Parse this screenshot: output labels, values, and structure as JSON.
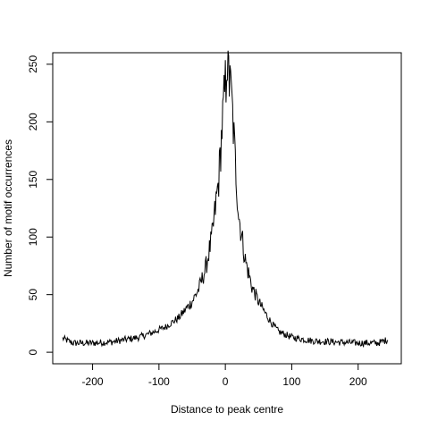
{
  "chart_data": {
    "type": "line",
    "title": "",
    "xlabel": "Distance to peak centre",
    "ylabel": "Number of motif occurrences",
    "xlim": [
      -260,
      265
    ],
    "ylim": [
      -10,
      260
    ],
    "x_ticks": [
      -200,
      -100,
      0,
      100,
      200
    ],
    "x_tick_labels": [
      "-200",
      "-100",
      "0",
      "100",
      "200"
    ],
    "y_ticks": [
      0,
      50,
      100,
      150,
      200,
      250
    ],
    "y_tick_labels": [
      "0",
      "50",
      "100",
      "150",
      "200",
      "250"
    ],
    "grid": false,
    "legend": "none",
    "line_color": "#000000",
    "x_range": [
      -245,
      245
    ],
    "profile_points": [
      [
        -245,
        12
      ],
      [
        -230,
        8
      ],
      [
        -200,
        8
      ],
      [
        -170,
        9
      ],
      [
        -150,
        11
      ],
      [
        -130,
        13
      ],
      [
        -110,
        17
      ],
      [
        -90,
        22
      ],
      [
        -70,
        30
      ],
      [
        -50,
        44
      ],
      [
        -40,
        55
      ],
      [
        -30,
        72
      ],
      [
        -20,
        100
      ],
      [
        -10,
        150
      ],
      [
        -5,
        195
      ],
      [
        0,
        232
      ],
      [
        5,
        240
      ],
      [
        10,
        215
      ],
      [
        15,
        165
      ],
      [
        20,
        120
      ],
      [
        30,
        80
      ],
      [
        40,
        57
      ],
      [
        50,
        44
      ],
      [
        60,
        34
      ],
      [
        70,
        25
      ],
      [
        80,
        18
      ],
      [
        100,
        13
      ],
      [
        130,
        10
      ],
      [
        160,
        9
      ],
      [
        200,
        8
      ],
      [
        230,
        8
      ],
      [
        245,
        11
      ]
    ],
    "noise_amplitude": 0.12
  }
}
